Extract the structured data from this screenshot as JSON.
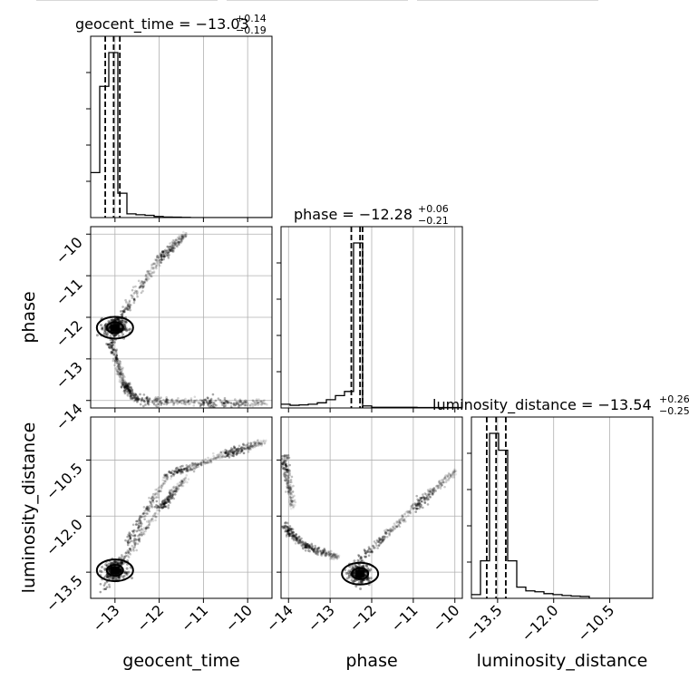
{
  "chart_data": {
    "type": "corner",
    "parameters": [
      "geocent_time",
      "phase",
      "luminosity_distance"
    ],
    "titles": [
      {
        "param": "geocent_time",
        "label": "geocent_time = ",
        "median": "−13.03",
        "plus": "+0.14",
        "minus": "−0.19"
      },
      {
        "param": "phase",
        "label": "phase = ",
        "median": "−12.28",
        "plus": "+0.06",
        "minus": "−0.21"
      },
      {
        "param": "luminosity_distance",
        "label": "luminosity_distance = ",
        "median": "−13.54",
        "plus": "+0.26",
        "minus": "−0.25"
      }
    ],
    "ranges": {
      "geocent_time": [
        -13.55,
        -9.45
      ],
      "phase": [
        -14.18,
        -9.82
      ],
      "luminosity_distance": [
        -14.2,
        -9.35
      ]
    },
    "ticks": {
      "geocent_time": {
        "values": [
          -13,
          -12,
          -11,
          -10
        ],
        "labels": [
          "−13",
          "−12",
          "−11",
          "−10"
        ]
      },
      "phase_x": {
        "values": [
          -14,
          -13,
          -12,
          -11,
          -10
        ],
        "labels": [
          "−14",
          "−13",
          "−12",
          "−11",
          "−10"
        ]
      },
      "phase_y": {
        "values": [
          -10,
          -11,
          -12,
          -13,
          -14
        ],
        "labels": [
          "−10",
          "−11",
          "−12",
          "−13",
          "−14"
        ]
      },
      "luminosity_distance_y": {
        "values": [
          -10.5,
          -12.0,
          -13.5
        ],
        "labels": [
          "−10.5",
          "−12.0",
          "−13.5"
        ]
      },
      "luminosity_distance_x": {
        "values": [
          -13.5,
          -12.0,
          -10.5
        ],
        "labels": [
          "−13.5",
          "−12.0",
          "−10.5"
        ]
      }
    },
    "histograms": {
      "geocent_time": {
        "bin_edges": [
          -13.55,
          -13.345,
          -13.14,
          -12.935,
          -12.73,
          -12.525,
          -12.32,
          -12.115,
          -11.91,
          -11.705,
          -11.5,
          -11.295,
          -11.09,
          -10.885,
          -10.68,
          -10.475,
          -10.27,
          -10.065,
          -9.86,
          -9.655,
          -9.45
        ],
        "counts": [
          0.24,
          0.7,
          0.88,
          0.13,
          0.02,
          0.015,
          0.012,
          0.006,
          0.003,
          0.002,
          0.001,
          0.0,
          0.0,
          0.0,
          0.0,
          0.0,
          0.0,
          0.0,
          0.0,
          0.0
        ],
        "quantiles": [
          -13.22,
          -13.03,
          -12.89
        ]
      },
      "phase": {
        "bin_edges": [
          -14.18,
          -13.962,
          -13.744,
          -13.526,
          -13.308,
          -13.09,
          -12.872,
          -12.654,
          -12.436,
          -12.218,
          -12.0,
          -11.782,
          -11.564,
          -11.346,
          -11.128,
          -10.91,
          -10.692,
          -10.474,
          -10.256,
          -10.038,
          -9.82
        ],
        "counts": [
          0.018,
          0.013,
          0.015,
          0.018,
          0.025,
          0.04,
          0.06,
          0.08,
          0.8,
          0.01,
          0.003,
          0.003,
          0.003,
          0.003,
          0.003,
          0.002,
          0.002,
          0.002,
          0.002,
          0.002
        ],
        "quantiles": [
          -12.49,
          -12.28,
          -12.22
        ]
      },
      "luminosity_distance": {
        "bin_edges": [
          -14.2,
          -13.9575,
          -13.715,
          -13.4725,
          -13.23,
          -12.9875,
          -12.745,
          -12.5025,
          -12.26,
          -12.0175,
          -11.775,
          -11.5325,
          -11.29,
          -11.0475,
          -10.805,
          -10.5625,
          -10.32,
          -10.0775,
          -9.835,
          -9.5925,
          -9.35
        ],
        "counts": [
          0.02,
          0.2,
          0.88,
          0.79,
          0.2,
          0.06,
          0.04,
          0.035,
          0.025,
          0.02,
          0.015,
          0.012,
          0.01,
          0.0,
          0.0,
          0.0,
          0.0,
          0.0,
          0.0,
          0.0
        ],
        "quantiles": [
          -13.79,
          -13.54,
          -13.28
        ]
      }
    },
    "scatter": {
      "geocent_time_vs_phase": {
        "core": {
          "x": -13.0,
          "y": -12.25
        },
        "branches": [
          {
            "from": [
              -13.0,
              -12.2
            ],
            "to": [
              -12.0,
              -10.6
            ]
          },
          {
            "from": [
              -12.0,
              -10.6
            ],
            "to": [
              -11.4,
              -10.0
            ]
          },
          {
            "from": [
              -13.1,
              -12.6
            ],
            "to": [
              -12.8,
              -13.6
            ]
          },
          {
            "from": [
              -12.8,
              -13.6
            ],
            "to": [
              -12.5,
              -14.0
            ]
          },
          {
            "from": [
              -12.5,
              -14.0
            ],
            "to": [
              -11.0,
              -14.05
            ]
          },
          {
            "from": [
              -11.0,
              -14.05
            ],
            "to": [
              -9.6,
              -14.05
            ]
          }
        ]
      },
      "geocent_time_vs_luminosity_distance": {
        "core": {
          "x": -13.0,
          "y": -13.45
        },
        "branches": [
          {
            "from": [
              -13.3,
              -14.0
            ],
            "to": [
              -12.0,
              -11.8
            ]
          },
          {
            "from": [
              -12.0,
              -11.8
            ],
            "to": [
              -11.4,
              -11.0
            ]
          },
          {
            "from": [
              -12.7,
              -12.7
            ],
            "to": [
              -11.8,
              -10.9
            ]
          },
          {
            "from": [
              -11.8,
              -10.9
            ],
            "to": [
              -10.5,
              -10.35
            ]
          },
          {
            "from": [
              -10.5,
              -10.35
            ],
            "to": [
              -9.6,
              -10.0
            ]
          }
        ]
      },
      "phase_vs_luminosity_distance": {
        "core": {
          "x": -12.28,
          "y": -13.54
        },
        "branches": [
          {
            "from": [
              -14.1,
              -12.3
            ],
            "to": [
              -13.6,
              -12.8
            ]
          },
          {
            "from": [
              -13.6,
              -12.8
            ],
            "to": [
              -12.8,
              -13.1
            ]
          },
          {
            "from": [
              -12.3,
              -13.2
            ],
            "to": [
              -11.0,
              -11.8
            ]
          },
          {
            "from": [
              -11.0,
              -11.8
            ],
            "to": [
              -10.0,
              -10.8
            ]
          },
          {
            "from": [
              -14.1,
              -10.4
            ],
            "to": [
              -13.9,
              -11.8
            ]
          }
        ]
      }
    },
    "axis_labels": {
      "geocent_time": "geocent_time",
      "phase": "phase",
      "luminosity_distance": "luminosity_distance"
    }
  }
}
